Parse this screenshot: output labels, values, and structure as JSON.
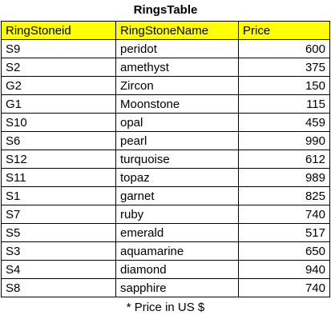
{
  "table": {
    "title": "RingsTable",
    "columns": [
      "RingStoneid",
      "RingStoneName",
      "Price"
    ],
    "rows": [
      [
        "S9",
        "peridot",
        "600"
      ],
      [
        "S2",
        "amethyst",
        "375"
      ],
      [
        "G2",
        "Zircon",
        "150"
      ],
      [
        "G1",
        "Moonstone",
        "115"
      ],
      [
        "S10",
        "opal",
        "459"
      ],
      [
        "S6",
        "pearl",
        "990"
      ],
      [
        "S12",
        "turquoise",
        "612"
      ],
      [
        "S11",
        "topaz",
        "989"
      ],
      [
        "S1",
        "garnet",
        "825"
      ],
      [
        "S7",
        "ruby",
        "740"
      ],
      [
        "S5",
        "emerald",
        "517"
      ],
      [
        "S3",
        "aquamarine",
        "650"
      ],
      [
        "S4",
        "diamond",
        "940"
      ],
      [
        "S8",
        "sapphire",
        "740"
      ]
    ],
    "footnote": "* Price in US $"
  },
  "colors": {
    "header_bg": "#ffff00",
    "border": "#000000"
  }
}
